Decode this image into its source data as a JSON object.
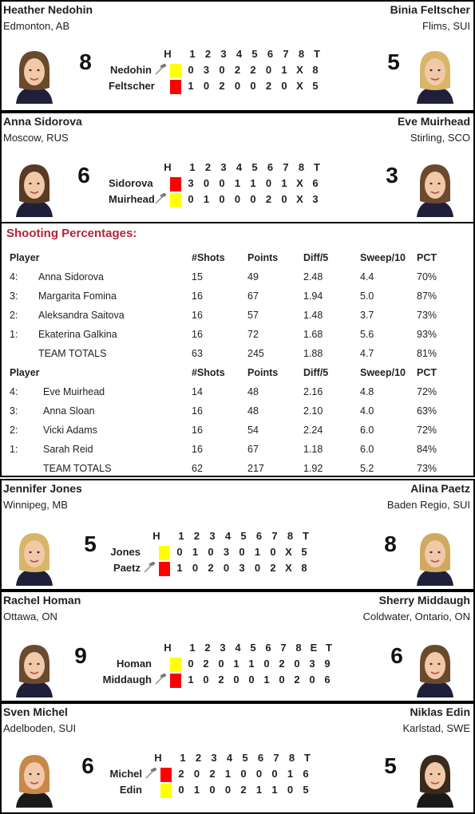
{
  "colors": {
    "yellow": "#ffff00",
    "red": "#ff0000",
    "title": "#b5243a"
  },
  "icons": {
    "hammer": "hammer-icon"
  },
  "games": [
    {
      "left": {
        "name": "Heather Nedohin",
        "location": "Edmonton, AB",
        "score": "8"
      },
      "right": {
        "name": "Binia Feltscher",
        "location": "Flims, SUI",
        "score": "5"
      },
      "header": [
        "H",
        "1",
        "2",
        "3",
        "4",
        "5",
        "6",
        "7",
        "8",
        "T"
      ],
      "rows": [
        {
          "team": "Nedohin",
          "hammer": true,
          "color": "yellow",
          "scores": [
            "0",
            "3",
            "0",
            "2",
            "2",
            "0",
            "1",
            "X",
            "8"
          ]
        },
        {
          "team": "Feltscher",
          "hammer": false,
          "color": "red",
          "scores": [
            "1",
            "0",
            "2",
            "0",
            "0",
            "2",
            "0",
            "X",
            "5"
          ]
        }
      ]
    },
    {
      "left": {
        "name": "Anna Sidorova",
        "location": "Moscow, RUS",
        "score": "6"
      },
      "right": {
        "name": "Eve Muirhead",
        "location": "Stirling, SCO",
        "score": "3"
      },
      "header": [
        "H",
        "1",
        "2",
        "3",
        "4",
        "5",
        "6",
        "7",
        "8",
        "T"
      ],
      "rows": [
        {
          "team": "Sidorova",
          "hammer": false,
          "color": "red",
          "scores": [
            "3",
            "0",
            "0",
            "1",
            "1",
            "0",
            "1",
            "X",
            "6"
          ]
        },
        {
          "team": "Muirhead",
          "hammer": true,
          "color": "yellow",
          "scores": [
            "0",
            "1",
            "0",
            "0",
            "0",
            "2",
            "0",
            "X",
            "3"
          ]
        }
      ]
    },
    {
      "left": {
        "name": "Jennifer Jones",
        "location": "Winnipeg, MB",
        "score": "5"
      },
      "right": {
        "name": "Alina Paetz",
        "location": "Baden Regio, SUI",
        "score": "8"
      },
      "header": [
        "H",
        "1",
        "2",
        "3",
        "4",
        "5",
        "6",
        "7",
        "8",
        "T"
      ],
      "rows": [
        {
          "team": "Jones",
          "hammer": false,
          "color": "yellow",
          "scores": [
            "0",
            "1",
            "0",
            "3",
            "0",
            "1",
            "0",
            "X",
            "5"
          ]
        },
        {
          "team": "Paetz",
          "hammer": true,
          "color": "red",
          "scores": [
            "1",
            "0",
            "2",
            "0",
            "3",
            "0",
            "2",
            "X",
            "8"
          ]
        }
      ]
    },
    {
      "left": {
        "name": "Rachel Homan",
        "location": "Ottawa, ON",
        "score": "9"
      },
      "right": {
        "name": "Sherry Middaugh",
        "location": "Coldwater, Ontario, ON",
        "score": "6"
      },
      "header": [
        "H",
        "1",
        "2",
        "3",
        "4",
        "5",
        "6",
        "7",
        "8",
        "E",
        "T"
      ],
      "rows": [
        {
          "team": "Homan",
          "hammer": false,
          "color": "yellow",
          "scores": [
            "0",
            "2",
            "0",
            "1",
            "1",
            "0",
            "2",
            "0",
            "3",
            "9"
          ]
        },
        {
          "team": "Middaugh",
          "hammer": true,
          "color": "red",
          "scores": [
            "1",
            "0",
            "2",
            "0",
            "0",
            "1",
            "0",
            "2",
            "0",
            "6"
          ]
        }
      ]
    },
    {
      "left": {
        "name": "Sven Michel",
        "location": "Adelboden, SUI",
        "score": "6"
      },
      "right": {
        "name": "Niklas Edin",
        "location": "Karlstad, SWE",
        "score": "5"
      },
      "header": [
        "H",
        "1",
        "2",
        "3",
        "4",
        "5",
        "6",
        "7",
        "8",
        "T"
      ],
      "rows": [
        {
          "team": "Michel",
          "hammer": true,
          "color": "red",
          "scores": [
            "2",
            "0",
            "2",
            "1",
            "0",
            "0",
            "0",
            "1",
            "6"
          ]
        },
        {
          "team": "Edin",
          "hammer": false,
          "color": "yellow",
          "scores": [
            "0",
            "1",
            "0",
            "0",
            "2",
            "1",
            "1",
            "0",
            "5"
          ]
        }
      ]
    }
  ],
  "shooting": {
    "title": "Shooting Percentages:",
    "headers": [
      "Player",
      "#Shots",
      "Points",
      "Diff/5",
      "Sweep/10",
      "PCT"
    ],
    "teams": [
      {
        "players": [
          {
            "pos": "4:",
            "name": "Anna Sidorova",
            "shots": "15",
            "points": "49",
            "diff": "2.48",
            "sweep": "4.4",
            "pct": "70%"
          },
          {
            "pos": "3:",
            "name": "Margarita Fomina",
            "shots": "16",
            "points": "67",
            "diff": "1.94",
            "sweep": "5.0",
            "pct": "87%"
          },
          {
            "pos": "2:",
            "name": "Aleksandra Saitova",
            "shots": "16",
            "points": "57",
            "diff": "1.48",
            "sweep": "3.7",
            "pct": "73%"
          },
          {
            "pos": "1:",
            "name": "Ekaterina Galkina",
            "shots": "16",
            "points": "72",
            "diff": "1.68",
            "sweep": "5.6",
            "pct": "93%"
          },
          {
            "pos": "",
            "name": "TEAM TOTALS",
            "shots": "63",
            "points": "245",
            "diff": "1.88",
            "sweep": "4.7",
            "pct": "81%"
          }
        ]
      },
      {
        "players": [
          {
            "pos": "4:",
            "name": "Eve Muirhead",
            "shots": "14",
            "points": "48",
            "diff": "2.16",
            "sweep": "4.8",
            "pct": "72%"
          },
          {
            "pos": "3:",
            "name": "Anna Sloan",
            "shots": "16",
            "points": "48",
            "diff": "2.10",
            "sweep": "4.0",
            "pct": "63%"
          },
          {
            "pos": "2:",
            "name": "Vicki Adams",
            "shots": "16",
            "points": "54",
            "diff": "2.24",
            "sweep": "6.0",
            "pct": "72%"
          },
          {
            "pos": "1:",
            "name": "Sarah Reid",
            "shots": "16",
            "points": "67",
            "diff": "1.18",
            "sweep": "6.0",
            "pct": "84%"
          },
          {
            "pos": "",
            "name": "TEAM TOTALS",
            "shots": "62",
            "points": "217",
            "diff": "1.92",
            "sweep": "5.2",
            "pct": "73%"
          }
        ]
      }
    ]
  }
}
